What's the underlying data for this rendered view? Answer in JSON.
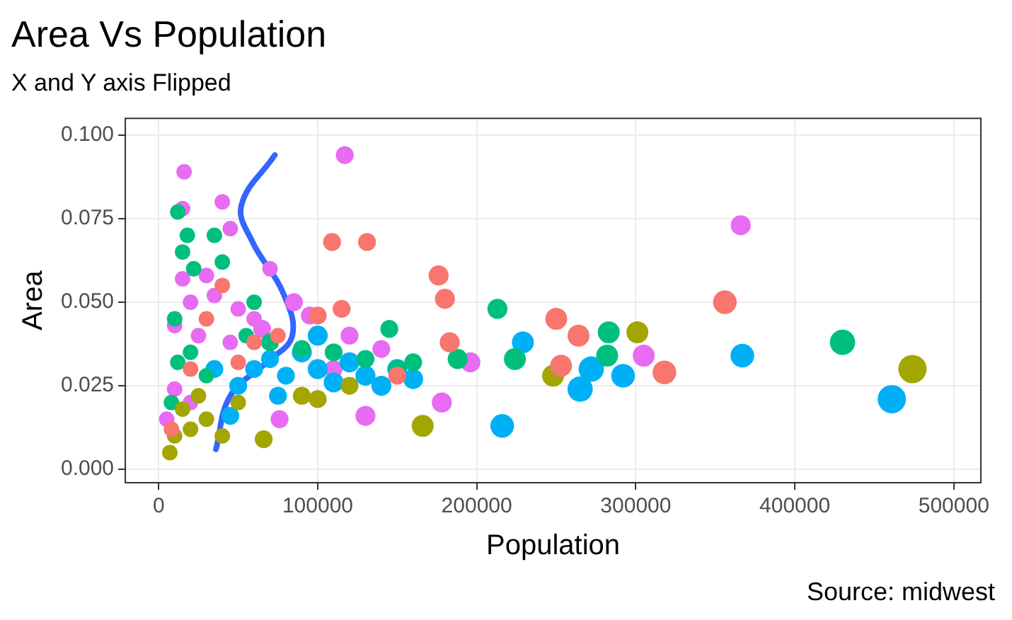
{
  "chart_data": {
    "type": "bubble",
    "title": "Area Vs Population",
    "subtitle": "X and Y axis Flipped",
    "xlabel": "Population",
    "ylabel": "Area",
    "annotations": [
      "Source: midwest"
    ],
    "xlim": [
      -21000,
      517000
    ],
    "ylim": [
      -0.004,
      0.105
    ],
    "xticks": [
      0,
      100000,
      200000,
      300000,
      400000,
      500000
    ],
    "yticks": [
      {
        "value": 0,
        "label": "0.000"
      },
      {
        "value": 0.025,
        "label": "0.025"
      },
      {
        "value": 0.05,
        "label": "0.050"
      },
      {
        "value": 0.075,
        "label": "0.075"
      },
      {
        "value": 0.1,
        "label": "0.100"
      }
    ],
    "grid": true,
    "legend": false,
    "series": [
      {
        "color": "#f8766d",
        "x": [
          109000,
          131000,
          176000,
          180000,
          183000,
          250000,
          264000,
          253000,
          318000,
          356000,
          30000,
          60000,
          100000,
          115000,
          20000,
          50000,
          8000,
          40000,
          75000,
          150000
        ],
        "values": [
          0.068,
          0.068,
          0.058,
          0.051,
          0.038,
          0.045,
          0.04,
          0.031,
          0.029,
          0.05,
          0.045,
          0.038,
          0.046,
          0.048,
          0.03,
          0.032,
          0.012,
          0.055,
          0.04,
          0.028
        ],
        "sizes": [
          0.4,
          0.4,
          0.5,
          0.5,
          0.5,
          0.6,
          0.6,
          0.6,
          0.7,
          0.7,
          0.3,
          0.3,
          0.4,
          0.4,
          0.3,
          0.3,
          0.3,
          0.3,
          0.3,
          0.4
        ]
      },
      {
        "color": "#a3a500",
        "x": [
          7000,
          10000,
          20000,
          30000,
          40000,
          15000,
          50000,
          66000,
          166000,
          248000,
          301000,
          474000,
          120000,
          90000,
          25000,
          100000
        ],
        "values": [
          0.005,
          0.01,
          0.012,
          0.015,
          0.01,
          0.018,
          0.02,
          0.009,
          0.013,
          0.028,
          0.041,
          0.03,
          0.025,
          0.022,
          0.022,
          0.021
        ],
        "sizes": [
          0.3,
          0.3,
          0.3,
          0.3,
          0.3,
          0.3,
          0.3,
          0.4,
          0.6,
          0.6,
          0.6,
          1,
          0.4,
          0.4,
          0.3,
          0.4
        ]
      },
      {
        "color": "#00bf7d",
        "x": [
          12000,
          18000,
          15000,
          35000,
          40000,
          10000,
          22000,
          12000,
          20000,
          55000,
          70000,
          90000,
          110000,
          130000,
          145000,
          150000,
          160000,
          8000,
          30000,
          60000,
          213000,
          224000,
          188000,
          283000,
          282000,
          430000
        ],
        "values": [
          0.077,
          0.07,
          0.065,
          0.07,
          0.062,
          0.045,
          0.06,
          0.032,
          0.035,
          0.04,
          0.038,
          0.036,
          0.035,
          0.033,
          0.042,
          0.03,
          0.032,
          0.02,
          0.028,
          0.05,
          0.048,
          0.033,
          0.033,
          0.041,
          0.034,
          0.038
        ],
        "sizes": [
          0.3,
          0.3,
          0.3,
          0.3,
          0.3,
          0.3,
          0.3,
          0.3,
          0.3,
          0.3,
          0.4,
          0.4,
          0.4,
          0.4,
          0.4,
          0.4,
          0.4,
          0.3,
          0.3,
          0.3,
          0.5,
          0.6,
          0.5,
          0.6,
          0.6,
          0.8
        ]
      },
      {
        "color": "#00b0f6",
        "x": [
          45000,
          50000,
          60000,
          70000,
          80000,
          90000,
          100000,
          110000,
          120000,
          130000,
          140000,
          150000,
          160000,
          100000,
          216000,
          229000,
          272000,
          265000,
          292000,
          367000,
          461000,
          35000,
          75000
        ],
        "values": [
          0.016,
          0.025,
          0.03,
          0.033,
          0.028,
          0.035,
          0.03,
          0.026,
          0.032,
          0.028,
          0.025,
          0.03,
          0.027,
          0.04,
          0.013,
          0.038,
          0.03,
          0.024,
          0.028,
          0.034,
          0.021,
          0.03,
          0.022
        ],
        "sizes": [
          0.4,
          0.4,
          0.4,
          0.4,
          0.4,
          0.5,
          0.5,
          0.5,
          0.5,
          0.5,
          0.5,
          0.5,
          0.5,
          0.5,
          0.7,
          0.6,
          0.8,
          0.8,
          0.7,
          0.7,
          1,
          0.4,
          0.4
        ]
      },
      {
        "color": "#e76bf3",
        "x": [
          16000,
          117000,
          15000,
          40000,
          45000,
          30000,
          15000,
          20000,
          35000,
          50000,
          60000,
          70000,
          10000,
          25000,
          45000,
          65000,
          95000,
          120000,
          140000,
          10000,
          20000,
          5000,
          76000,
          130000,
          178000,
          196000,
          305000,
          366000,
          110000,
          85000
        ],
        "values": [
          0.089,
          0.094,
          0.078,
          0.08,
          0.072,
          0.058,
          0.057,
          0.05,
          0.052,
          0.048,
          0.045,
          0.06,
          0.043,
          0.04,
          0.038,
          0.042,
          0.046,
          0.04,
          0.036,
          0.024,
          0.02,
          0.015,
          0.015,
          0.016,
          0.02,
          0.032,
          0.034,
          0.073,
          0.03,
          0.05
        ],
        "sizes": [
          0.3,
          0.4,
          0.3,
          0.3,
          0.3,
          0.3,
          0.3,
          0.3,
          0.3,
          0.3,
          0.3,
          0.3,
          0.3,
          0.3,
          0.3,
          0.4,
          0.4,
          0.4,
          0.4,
          0.3,
          0.3,
          0.3,
          0.4,
          0.5,
          0.5,
          0.5,
          0.6,
          0.5,
          0.4,
          0.4
        ]
      },
      {
        "type": "line",
        "color": "#3366ff",
        "marker": "none",
        "x": [
          36000,
          45000,
          68000,
          84000,
          78000,
          59000,
          52000,
          73000
        ],
        "values": [
          0.006,
          0.022,
          0.032,
          0.04,
          0.053,
          0.068,
          0.079,
          0.094
        ]
      }
    ]
  }
}
